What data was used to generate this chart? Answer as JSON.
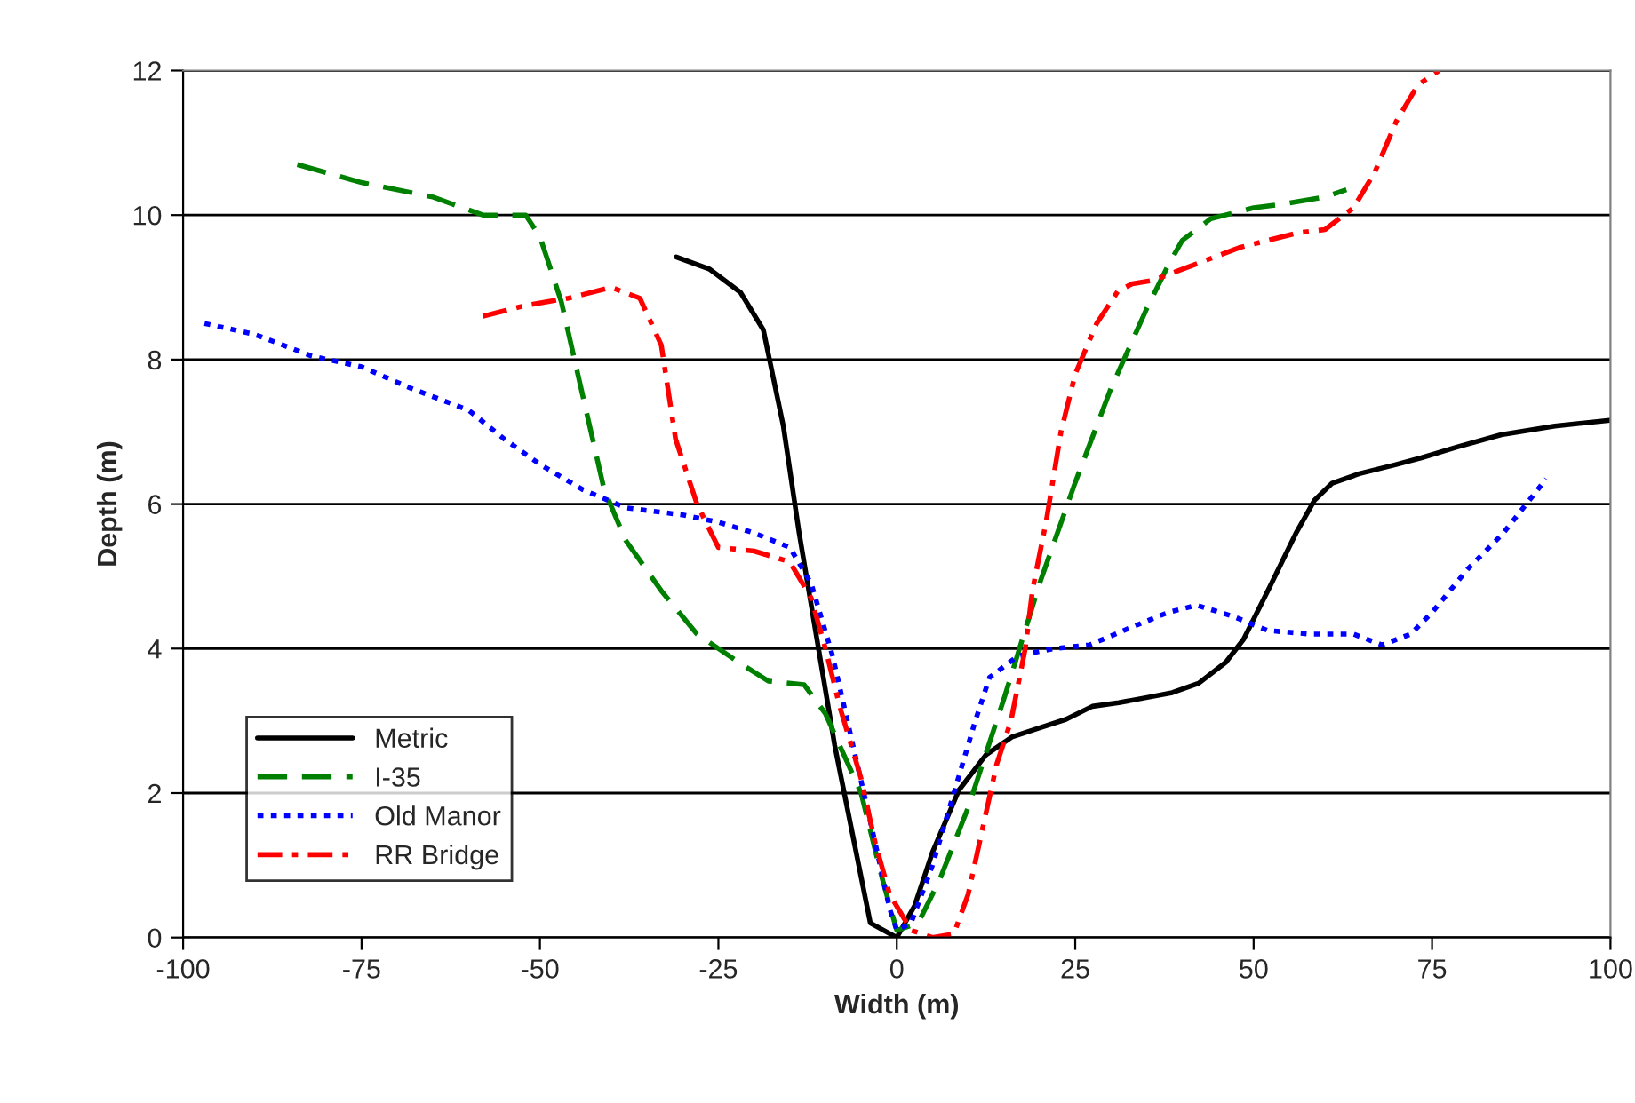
{
  "chart_data": {
    "type": "line",
    "xlabel": "Width (m)",
    "ylabel": "Depth (m)",
    "xlim": [
      -100,
      100
    ],
    "xticks": [
      -100,
      -75,
      -50,
      -25,
      0,
      25,
      50,
      75,
      100
    ],
    "ylim": [
      0,
      12
    ],
    "yticks": [
      0,
      2,
      4,
      6,
      8,
      10,
      12
    ],
    "grid": "y",
    "legend": "bottom left",
    "marker": "none",
    "series": [
      {
        "name": "Metric",
        "color": "#000000",
        "line_style": "solid",
        "x": [
          -30.9,
          -26.2,
          -21.9,
          -18.7,
          -15.9,
          -13.7,
          -8.7,
          -3.7,
          0,
          2.5,
          5.0,
          8.7,
          12.5,
          16.2,
          19.9,
          23.7,
          27.4,
          31.1,
          34.9,
          38.6,
          42.3,
          46.1,
          48.6,
          52.3,
          56.0,
          58.5,
          61.0,
          64.8,
          69.7,
          73.5,
          78.5,
          84.7,
          92.2,
          99.9
        ],
        "values": [
          9.42,
          9.25,
          8.93,
          8.41,
          7.08,
          5.61,
          2.66,
          0.2,
          0,
          0.44,
          1.18,
          2.04,
          2.53,
          2.78,
          2.9,
          3.02,
          3.2,
          3.25,
          3.32,
          3.39,
          3.52,
          3.81,
          4.13,
          4.86,
          5.61,
          6.05,
          6.29,
          6.42,
          6.54,
          6.64,
          6.79,
          6.96,
          7.08,
          7.16
        ]
      },
      {
        "name": "I-35",
        "color": "#008000",
        "line_style": "dashed",
        "x": [
          -84,
          -75,
          -65,
          -58,
          -52,
          -50,
          -47,
          -44,
          -41,
          -38,
          -33,
          -28,
          -22,
          -18,
          -13,
          -10,
          -5,
          -2,
          0,
          3,
          6,
          10,
          15,
          20,
          25,
          30,
          35,
          38,
          40,
          44,
          50,
          54,
          60,
          63
        ],
        "values": [
          10.7,
          10.45,
          10.25,
          10.0,
          10.0,
          9.7,
          8.8,
          7.5,
          6.2,
          5.5,
          4.8,
          4.2,
          3.8,
          3.55,
          3.5,
          3.1,
          2.0,
          0.8,
          0.1,
          0.2,
          0.8,
          1.8,
          3.3,
          4.9,
          6.3,
          7.6,
          8.7,
          9.3,
          9.65,
          9.95,
          10.1,
          10.15,
          10.25,
          10.35
        ]
      },
      {
        "name": "Old Manor",
        "color": "#0000ff",
        "line_style": "dotted",
        "x": [
          -97,
          -90,
          -82,
          -75,
          -68,
          -60,
          -55,
          -50,
          -44,
          -38,
          -30,
          -25,
          -20,
          -15,
          -12,
          -9,
          -6,
          -3,
          -1,
          0,
          2,
          5,
          8,
          11,
          13,
          17,
          22,
          27,
          33,
          38,
          42,
          47,
          52,
          58,
          64,
          68,
          72,
          75,
          80,
          85,
          91
        ],
        "values": [
          8.5,
          8.35,
          8.05,
          7.9,
          7.6,
          7.3,
          6.9,
          6.55,
          6.2,
          5.95,
          5.85,
          5.75,
          5.6,
          5.4,
          4.9,
          3.9,
          2.6,
          1.3,
          0.4,
          0.1,
          0.2,
          1.0,
          2.0,
          3.0,
          3.6,
          3.9,
          4.0,
          4.05,
          4.3,
          4.5,
          4.6,
          4.45,
          4.25,
          4.2,
          4.2,
          4.05,
          4.2,
          4.5,
          5.1,
          5.6,
          6.35
        ]
      },
      {
        "name": "RR Bridge",
        "color": "#ff0000",
        "line_style": "dashdot",
        "x": [
          -58,
          -52,
          -46,
          -40,
          -36,
          -33,
          -31,
          -28,
          -25,
          -20,
          -15,
          -12,
          -10,
          -8,
          -5,
          -3,
          -1,
          2,
          5,
          8,
          10,
          12,
          14,
          16,
          18,
          19,
          21,
          23,
          25,
          28,
          31,
          33,
          36,
          40,
          44,
          48,
          52,
          56,
          60,
          64,
          67,
          70,
          73,
          76
        ],
        "values": [
          8.6,
          8.75,
          8.85,
          9.0,
          8.85,
          8.2,
          6.9,
          6.0,
          5.4,
          5.35,
          5.2,
          4.7,
          4.0,
          3.2,
          2.2,
          1.3,
          0.6,
          0.1,
          0,
          0.05,
          0.6,
          1.5,
          2.4,
          3.0,
          4.0,
          4.8,
          5.8,
          7.0,
          7.8,
          8.5,
          8.95,
          9.05,
          9.1,
          9.25,
          9.4,
          9.55,
          9.65,
          9.75,
          9.8,
          10.1,
          10.6,
          11.3,
          11.8,
          12.0
        ]
      }
    ]
  }
}
